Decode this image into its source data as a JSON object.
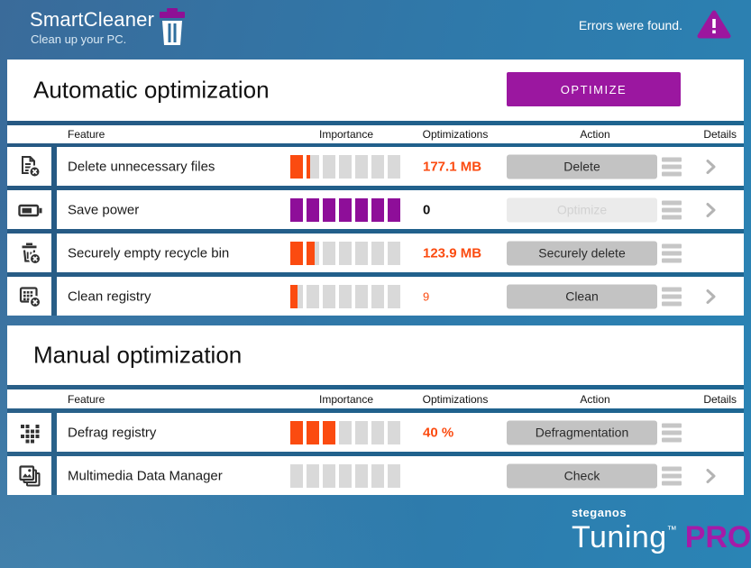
{
  "header": {
    "app_title": "SmartCleaner",
    "app_subtitle": "Clean up your PC.",
    "status_message": "Errors were found."
  },
  "auto_section": {
    "title": "Automatic optimization",
    "optimize_button": "OPTIMIZE"
  },
  "manual_section": {
    "title": "Manual optimization"
  },
  "table_headers": {
    "feature": "Feature",
    "importance": "Importance",
    "optimizations": "Optimizations",
    "action": "Action",
    "details": "Details"
  },
  "colors": {
    "accent_purple": "#9b17a0",
    "importance_orange": "#fb4b10",
    "importance_purple": "#8e0e99",
    "importance_empty_gray": "#d9d9d9",
    "pro_purple": "#a51ba8"
  },
  "importance_segments_total": 7,
  "rows": {
    "auto": [
      {
        "icon": "file-delete",
        "feature": "Delete unnecessary files",
        "importance": 1.25,
        "importance_color": "orange",
        "value": "177.1 MB",
        "action": "Delete",
        "enabled": true,
        "has_details": true
      },
      {
        "icon": "battery",
        "feature": "Save power",
        "importance": 7,
        "importance_color": "purple",
        "value": "0",
        "action": "Optimize",
        "enabled": false,
        "has_details": true
      },
      {
        "icon": "trash-delete",
        "feature": "Securely empty recycle bin",
        "importance": 1.65,
        "importance_color": "orange",
        "value": "123.9 MB",
        "action": "Securely delete",
        "enabled": true,
        "has_details": false
      },
      {
        "icon": "registry-delete",
        "feature": "Clean registry",
        "importance": 0.55,
        "importance_color": "orange",
        "value": "9",
        "action": "Clean",
        "enabled": true,
        "has_details": true
      }
    ],
    "manual": [
      {
        "icon": "defrag",
        "feature": "Defrag registry",
        "importance": 3,
        "importance_color": "orange",
        "value": "40 %",
        "action": "Defragmentation",
        "enabled": true,
        "has_details": false
      },
      {
        "icon": "multimedia",
        "feature": "Multimedia Data Manager",
        "importance": 0,
        "importance_color": "orange",
        "value": "",
        "action": "Check",
        "enabled": true,
        "has_details": true
      }
    ]
  },
  "footer": {
    "brand": "steganos",
    "product": "Tuning",
    "trademark": "™",
    "edition": "PRO"
  }
}
